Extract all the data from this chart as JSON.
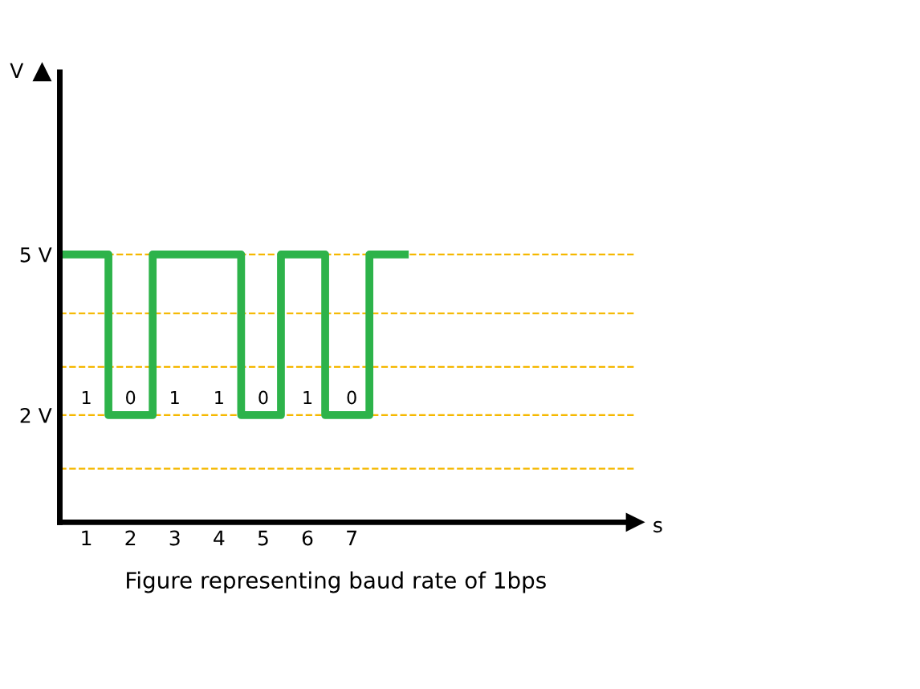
{
  "chart_data": {
    "type": "step",
    "xlabel": "s",
    "ylabel": "V",
    "annotations": [
      "1",
      "0",
      "1",
      "1",
      "0",
      "1",
      "0",
      "Figure representing baud rate of 1bps"
    ],
    "series": [
      {
        "color": "#2db34a",
        "x": [
          0.4,
          1.5,
          2.5,
          4.5,
          5.4,
          6.4,
          7.4,
          8.2
        ],
        "values": [
          5,
          2,
          5,
          2,
          5,
          2,
          5,
          5
        ]
      }
    ],
    "xlim": [
      0.4,
      13.4
    ],
    "xticks": [
      1,
      2,
      3,
      4,
      5,
      6,
      7
    ],
    "ylim": [
      0,
      8.4
    ],
    "yticks": [
      {
        "value": 1,
        "label": null
      },
      {
        "value": 2,
        "label": "2 V"
      },
      {
        "value": 2.9,
        "label": null
      },
      {
        "value": 3.9,
        "label": null
      },
      {
        "value": 5,
        "label": "5 V"
      }
    ],
    "grid": "y",
    "line_style": "solid",
    "marker": "none"
  }
}
